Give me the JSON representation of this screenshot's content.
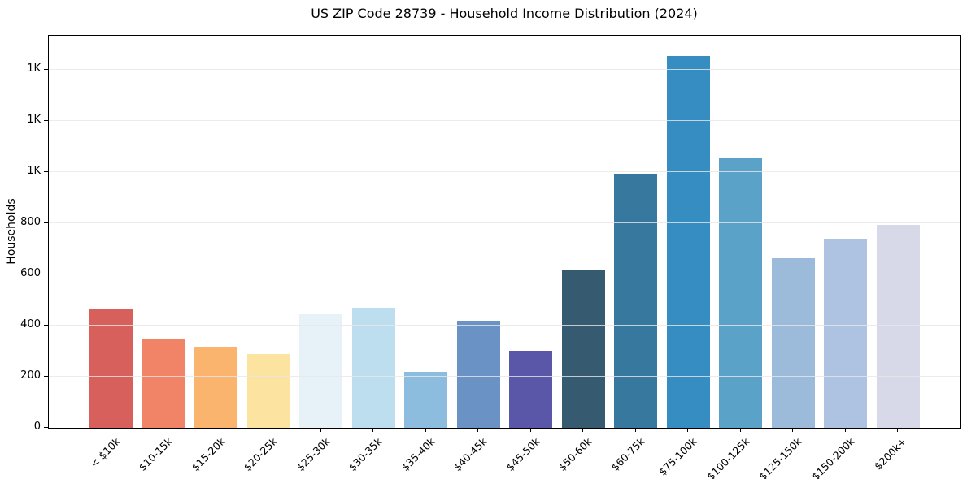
{
  "chart_data": {
    "type": "bar",
    "title": "US ZIP Code 28739 - Household Income Distribution (2024)",
    "ylabel": "Households",
    "xlabel": "",
    "categories": [
      "< $10k",
      "$10-15k",
      "$15-20k",
      "$20-25k",
      "$25-30k",
      "$30-35k",
      "$35-40k",
      "$40-45k",
      "$45-50k",
      "$50-60k",
      "$60-75k",
      "$75-100k",
      "$100-125k",
      "$125-150k",
      "$150-200k",
      "$200k+"
    ],
    "values": [
      465,
      350,
      315,
      290,
      445,
      470,
      220,
      415,
      300,
      620,
      995,
      1455,
      1055,
      665,
      740,
      795
    ],
    "bar_colors": [
      "#d7605c",
      "#f18366",
      "#fbb46e",
      "#fde3a0",
      "#e6f1f8",
      "#bddeee",
      "#8cbdde",
      "#6a92c5",
      "#5b57a8",
      "#365b70",
      "#37799e",
      "#368dc1",
      "#5aa2c8",
      "#9cbbdb",
      "#adc3e1",
      "#d7d9e8"
    ],
    "yticks": {
      "values": [
        0,
        200,
        400,
        600,
        800,
        1000,
        1200,
        1400
      ],
      "labels": [
        "0",
        "200",
        "400",
        "600",
        "800",
        "1K",
        "1K",
        "1K"
      ]
    },
    "ylim": [
      0,
      1530
    ],
    "grid": "horizontal",
    "legend": "none"
  },
  "colors": {
    "background": "#ffffff",
    "grid": "#e7e7e7",
    "spine": "#000000",
    "text": "#000000"
  }
}
